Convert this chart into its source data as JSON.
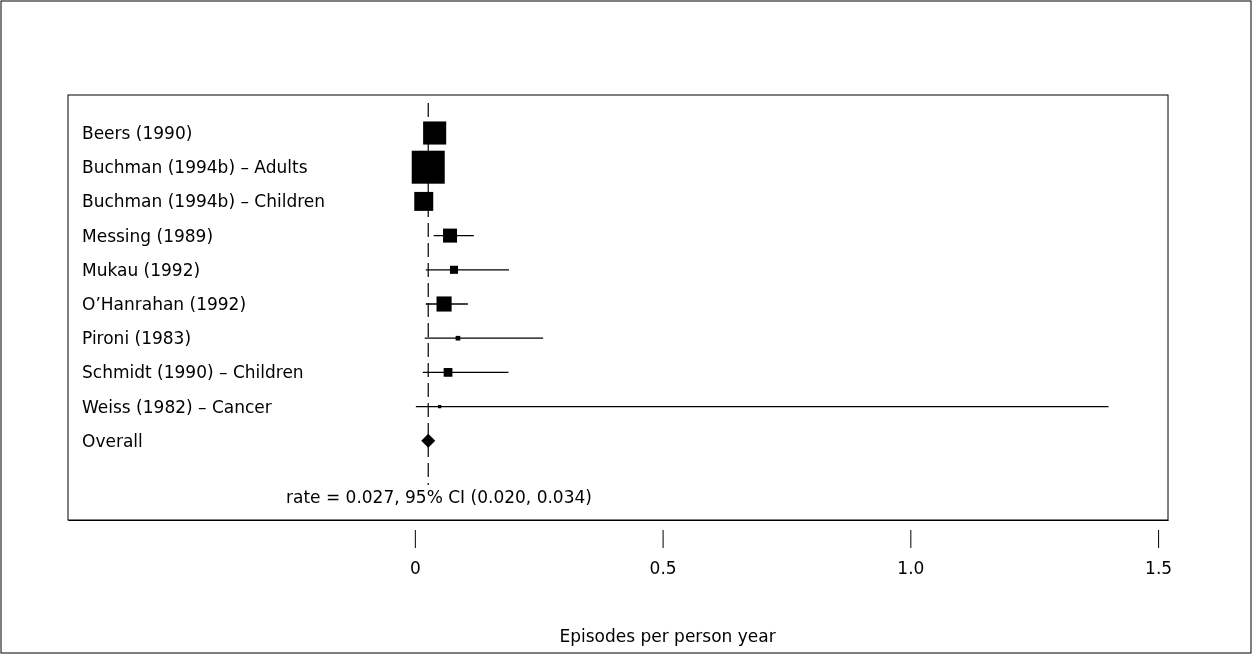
{
  "chart_data": {
    "type": "bubble",
    "orientation": "horizontal",
    "xlabel": "Episodes per person year",
    "categories": [
      "Beers (1990)",
      "Buchman (1994b) – Adults",
      "Buchman (1994b) – Children",
      "Messing (1989)",
      "Mukau (1992)",
      "O’Hanrahan (1992)",
      "Pironi (1983)",
      "Schmidt (1990) – Children",
      "Weiss (1982) – Cancer",
      "Overall"
    ],
    "series": [
      {
        "color": "#000000",
        "marker": "square",
        "values": [
          0.04,
          0.027,
          0.018,
          0.071,
          0.079,
          0.059,
          0.087,
          0.067,
          0.05,
          null
        ],
        "sizes": [
          0.49,
          1,
          0.33,
          0.18,
          0.06,
          0.21,
          0.02,
          0.07,
          0.01,
          null
        ],
        "errors": [
          null,
          null,
          null,
          [
            0.038,
            0.119
          ],
          [
            0.022,
            0.19
          ],
          [
            0.022,
            0.107
          ],
          [
            0.02,
            0.259
          ],
          [
            0.016,
            0.189
          ],
          [
            0.002,
            1.4
          ],
          null
        ]
      },
      {
        "color": "#000000",
        "marker": "diamond",
        "values": [
          null,
          null,
          null,
          null,
          null,
          null,
          null,
          null,
          null,
          0.027
        ]
      }
    ],
    "xlim": [
      -0.7,
      1.52
    ],
    "xticks": [
      {
        "value": 0,
        "label": "0"
      },
      {
        "value": 0.5,
        "label": "0.5"
      },
      {
        "value": 1,
        "label": "1.0"
      },
      {
        "value": 1.5,
        "label": "1.5"
      }
    ],
    "ref_lines": [
      {
        "axis": "x",
        "value": 0.027,
        "line_style": "dashed"
      }
    ],
    "annotations": [
      "rate = 0.027, 95% CI (0.020, 0.034)"
    ]
  }
}
